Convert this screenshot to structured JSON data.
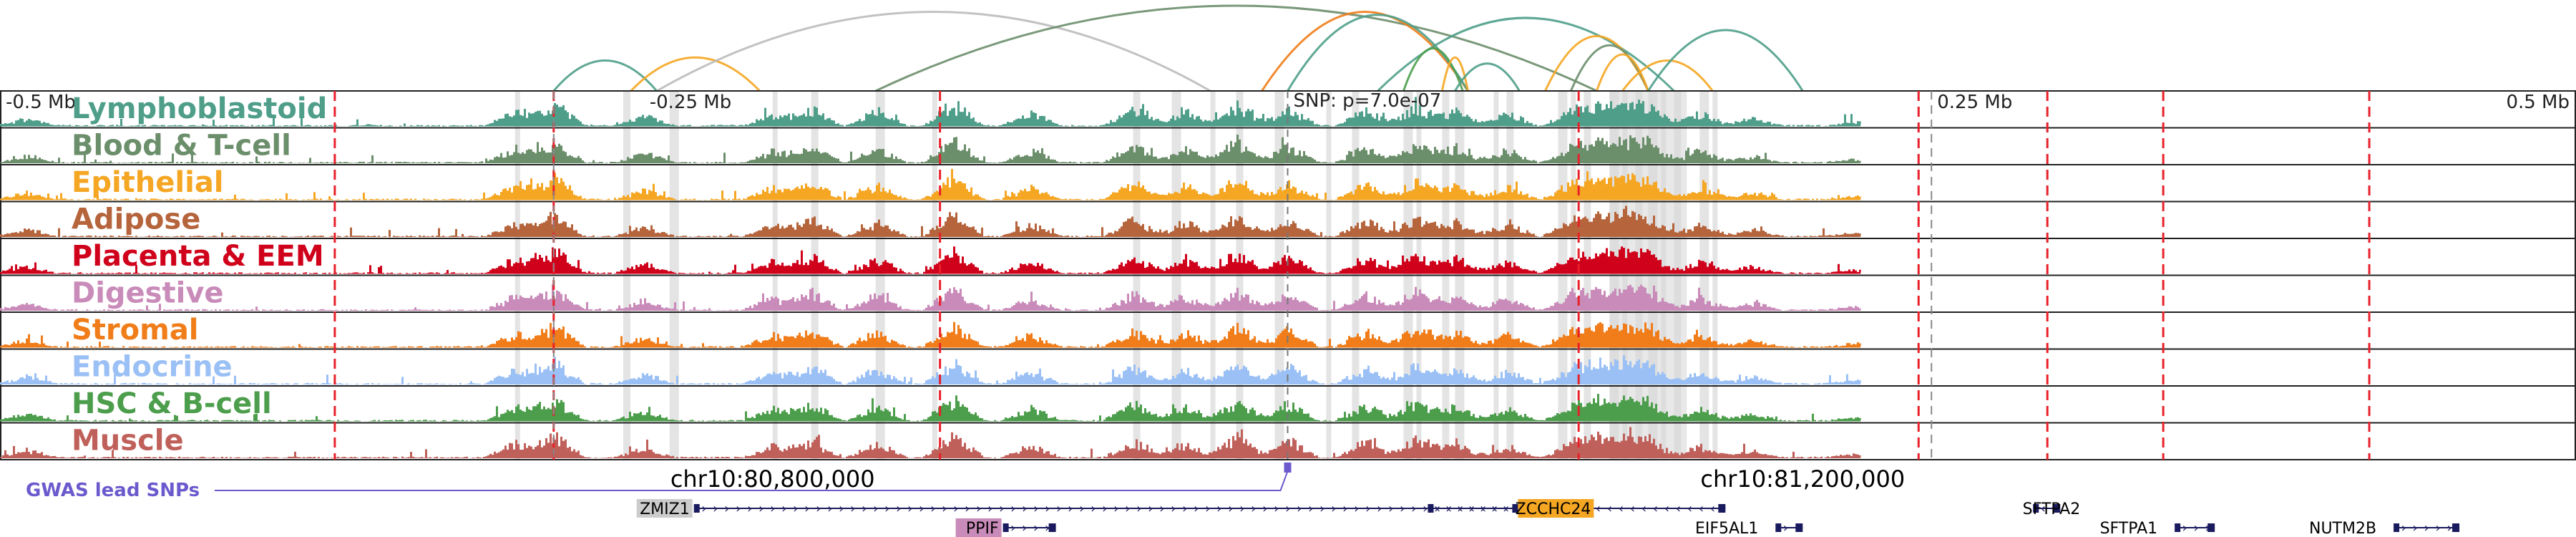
{
  "region": {
    "ticks": [
      {
        "label": "-0.5 Mb",
        "pos": -0.5
      },
      {
        "label": "-0.25 Mb",
        "pos": -0.25
      },
      {
        "label": "0.25 Mb",
        "pos": 0.25
      },
      {
        "label": "0.5 Mb",
        "pos": 0.5
      }
    ],
    "coordinates": [
      {
        "label": "chr10:80,800,000",
        "pos": -0.2
      },
      {
        "label": "chr10:81,200,000",
        "pos": 0.2
      }
    ]
  },
  "snp": {
    "label": "SNP: p=7.0e-07",
    "pos": 0.0
  },
  "gwas": {
    "label": "GWAS lead SNPs",
    "color": "#6a5acd"
  },
  "tracks": [
    {
      "name": "Lymphoblastoid",
      "color": "#4e9e8a"
    },
    {
      "name": "Blood & T-cell",
      "color": "#6b8e6b"
    },
    {
      "name": "Epithelial",
      "color": "#f5a623"
    },
    {
      "name": "Adipose",
      "color": "#b5643c"
    },
    {
      "name": "Placenta & EEM",
      "color": "#d0021b"
    },
    {
      "name": "Digestive",
      "color": "#c98bb9"
    },
    {
      "name": "Stromal",
      "color": "#f07d1a"
    },
    {
      "name": "Endocrine",
      "color": "#9ac0f5"
    },
    {
      "name": "HSC & B-cell",
      "color": "#4c9e4c"
    },
    {
      "name": "Muscle",
      "color": "#c0605a"
    }
  ],
  "genes": [
    {
      "name": "ZMIZ1",
      "start": -0.23,
      "end": 0.09,
      "strand": "+",
      "label_pos": -0.23,
      "row": 1,
      "highlight": "#cccccc"
    },
    {
      "name": "PPIF",
      "start": -0.11,
      "end": -0.09,
      "strand": "+",
      "label_pos": -0.11,
      "row": 2,
      "highlight": "#c98bb9"
    },
    {
      "name": "ZCCHC24",
      "start": 0.055,
      "end": 0.17,
      "strand": "-",
      "label_pos": 0.12,
      "row": 1,
      "highlight": "#f5a623"
    },
    {
      "name": "EIF5AL1",
      "start": 0.19,
      "end": 0.2,
      "strand": "+",
      "label_pos": 0.185,
      "row": 2,
      "highlight": ""
    },
    {
      "name": "SFTPA2",
      "start": 0.29,
      "end": 0.3,
      "strand": "-",
      "label_pos": 0.31,
      "row": 1,
      "highlight": ""
    },
    {
      "name": "SFTPA1",
      "start": 0.345,
      "end": 0.36,
      "strand": "+",
      "label_pos": 0.34,
      "row": 2,
      "highlight": ""
    },
    {
      "name": "NUTM2B",
      "start": 0.43,
      "end": 0.455,
      "strand": "+",
      "label_pos": 0.425,
      "row": 2,
      "highlight": ""
    }
  ],
  "red_lines": [
    -0.37,
    -0.285,
    -0.135,
    0.113,
    0.245,
    0.295,
    0.34,
    0.42
  ],
  "grey_lines": [
    -0.285,
    0.25
  ],
  "loops": [
    {
      "from": -0.285,
      "to": -0.245,
      "color": "#4e9e8a",
      "height": 0.5
    },
    {
      "from": -0.255,
      "to": -0.205,
      "color": "#f5a623",
      "height": 0.55
    },
    {
      "from": -0.245,
      "to": -0.03,
      "color": "#bbbbbb",
      "height": 1.3
    },
    {
      "from": -0.16,
      "to": 0.12,
      "color": "#6b8e6b",
      "height": 1.4
    },
    {
      "from": -0.01,
      "to": 0.07,
      "color": "#f07d1a",
      "height": 1.3
    },
    {
      "from": 0.0,
      "to": 0.07,
      "color": "#4e9e8a",
      "height": 1.25
    },
    {
      "from": 0.035,
      "to": 0.15,
      "color": "#4e9e8a",
      "height": 1.2
    },
    {
      "from": 0.045,
      "to": 0.068,
      "color": "#4c9e4c",
      "height": 0.7
    },
    {
      "from": 0.06,
      "to": 0.07,
      "color": "#f5a623",
      "height": 0.55
    },
    {
      "from": 0.065,
      "to": 0.09,
      "color": "#4e9e8a",
      "height": 0.45
    },
    {
      "from": 0.1,
      "to": 0.14,
      "color": "#f5a623",
      "height": 0.9
    },
    {
      "from": 0.11,
      "to": 0.14,
      "color": "#6b8e6b",
      "height": 0.75
    },
    {
      "from": 0.12,
      "to": 0.14,
      "color": "#f5a623",
      "height": 0.6
    },
    {
      "from": 0.13,
      "to": 0.165,
      "color": "#f5a623",
      "height": 0.5
    },
    {
      "from": 0.14,
      "to": 0.2,
      "color": "#4e9e8a",
      "height": 1.0
    }
  ]
}
